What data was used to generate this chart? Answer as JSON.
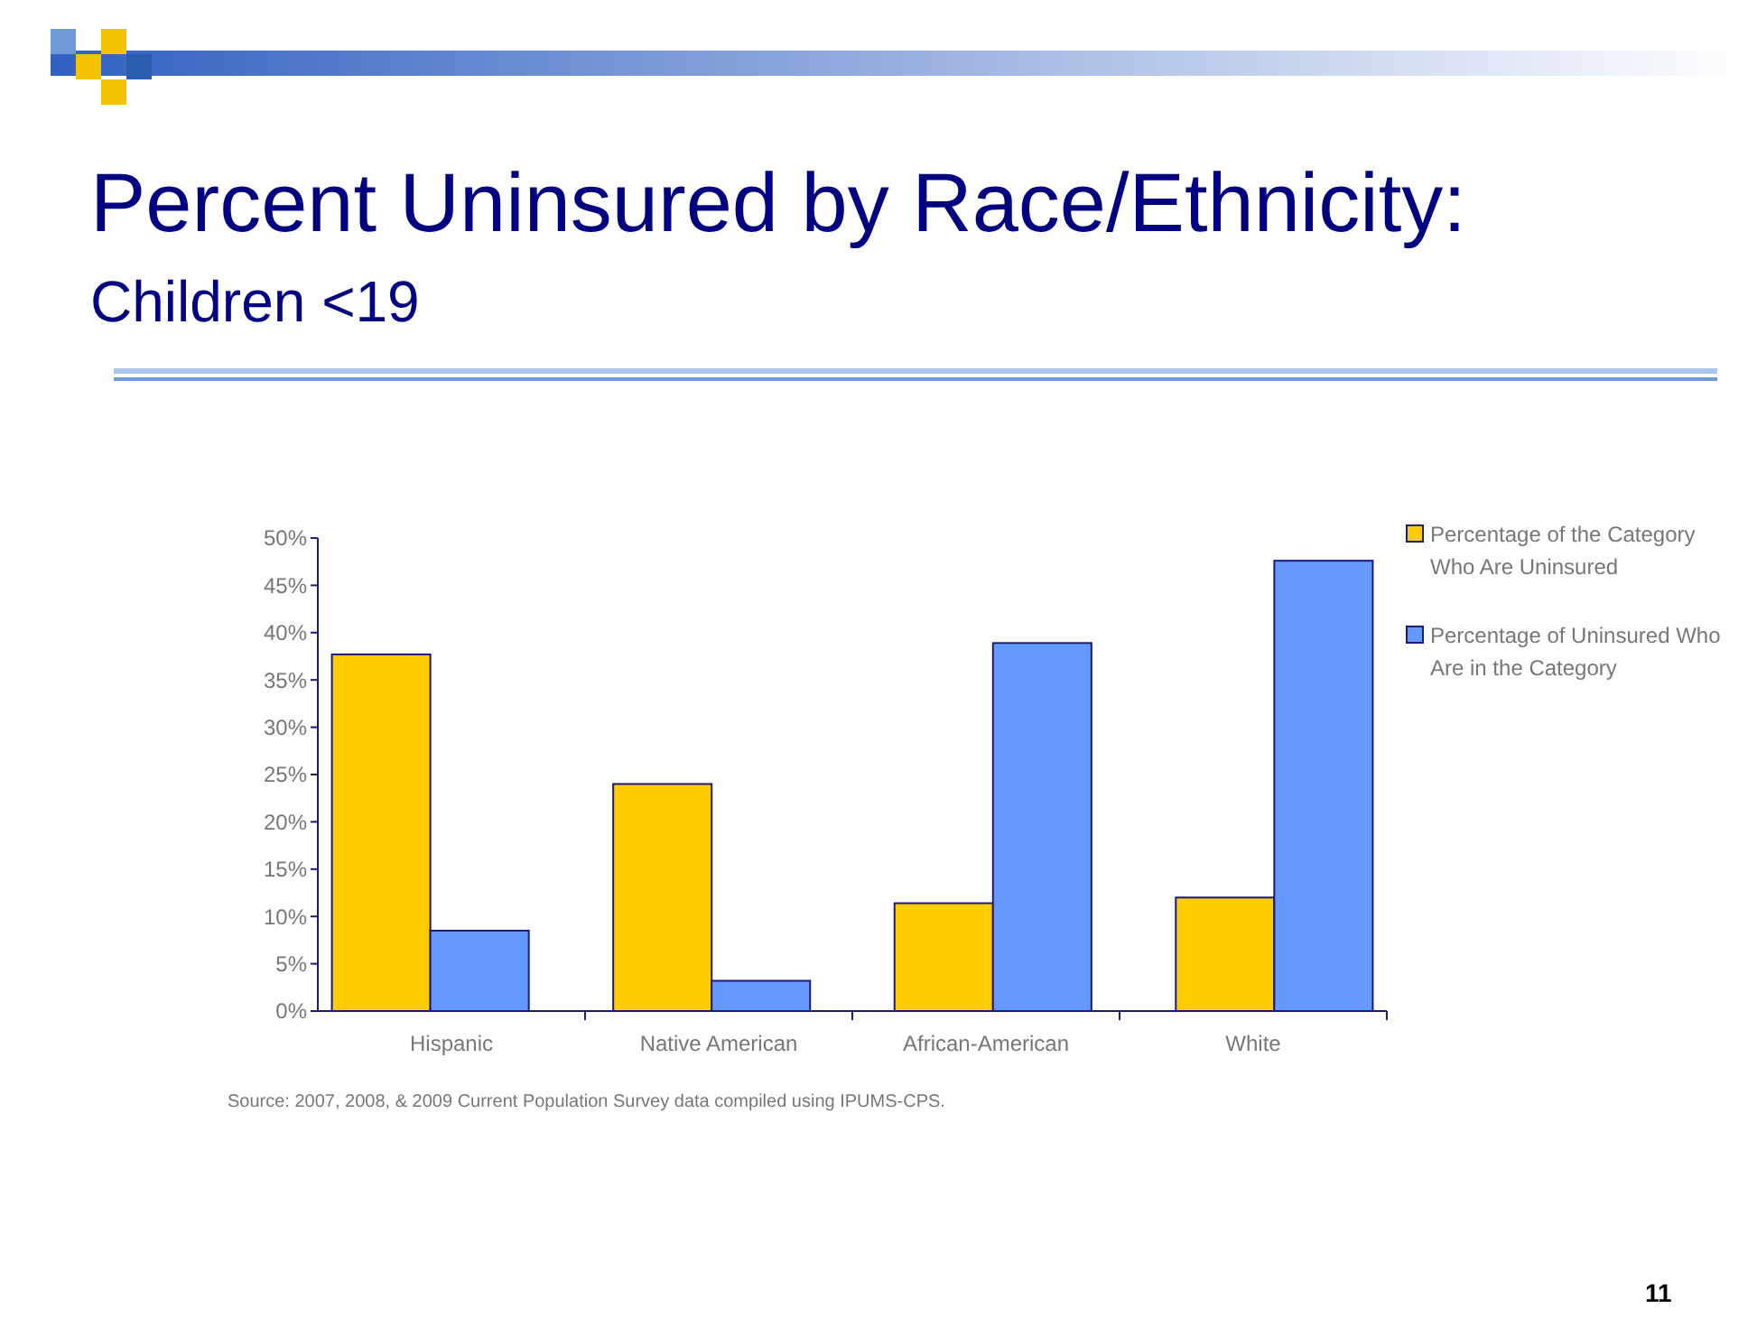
{
  "chart_data": {
    "type": "bar",
    "title": "Percent Uninsured by Race/Ethnicity:",
    "subtitle": "Children <19",
    "categories": [
      "Hispanic",
      "Native American",
      "African-American",
      "White"
    ],
    "series": [
      {
        "name": "Percentage of the Category Who Are Uninsured",
        "color": "#ffcc00",
        "values": [
          37.7,
          24.0,
          11.4,
          12.0
        ]
      },
      {
        "name": "Percentage of Uninsured Who Are in the Category",
        "color": "#6699ff",
        "values": [
          8.5,
          3.2,
          38.9,
          47.6
        ]
      }
    ],
    "ylim": [
      0,
      50
    ],
    "yticks": [
      {
        "value": 0,
        "label": "0%"
      },
      {
        "value": 5,
        "label": "5%"
      },
      {
        "value": 10,
        "label": "10%"
      },
      {
        "value": 15,
        "label": "15%"
      },
      {
        "value": 20,
        "label": "20%"
      },
      {
        "value": 25,
        "label": "25%"
      },
      {
        "value": 30,
        "label": "30%"
      },
      {
        "value": 35,
        "label": "35%"
      },
      {
        "value": 40,
        "label": "40%"
      },
      {
        "value": 45,
        "label": "45%"
      },
      {
        "value": 50,
        "label": "50%"
      }
    ],
    "grid": false,
    "legend": "top right",
    "annotations": [
      "Source:  2007, 2008, & 2009 Current Population Survey data compiled using IPUMS-CPS.",
      "11"
    ]
  }
}
